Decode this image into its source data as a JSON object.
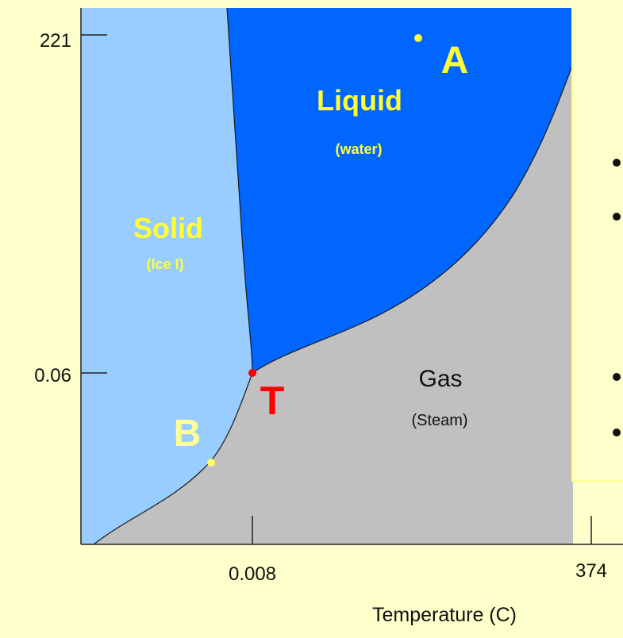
{
  "diagram": {
    "y_ticks": [
      "221",
      "0.06"
    ],
    "x_ticks": [
      "0.008",
      "374"
    ],
    "x_axis_label": "Temperature (C)",
    "regions": {
      "solid": {
        "label": "Solid",
        "sublabel": "(Ice I)"
      },
      "liquid": {
        "label": "Liquid",
        "sublabel": "(water)"
      },
      "gas": {
        "label": "Gas",
        "sublabel": "(Steam)"
      }
    },
    "points": {
      "a": {
        "label": "A"
      },
      "b": {
        "label": "B"
      },
      "t": {
        "label": "T"
      }
    },
    "colors": {
      "page_background": "#ffffcc",
      "solid_region": "#99ccff",
      "liquid_region": "#0066ff",
      "gas_region": "#c0c0c0",
      "region_label": "#ffff33",
      "triple_point": "#ff0000"
    }
  }
}
